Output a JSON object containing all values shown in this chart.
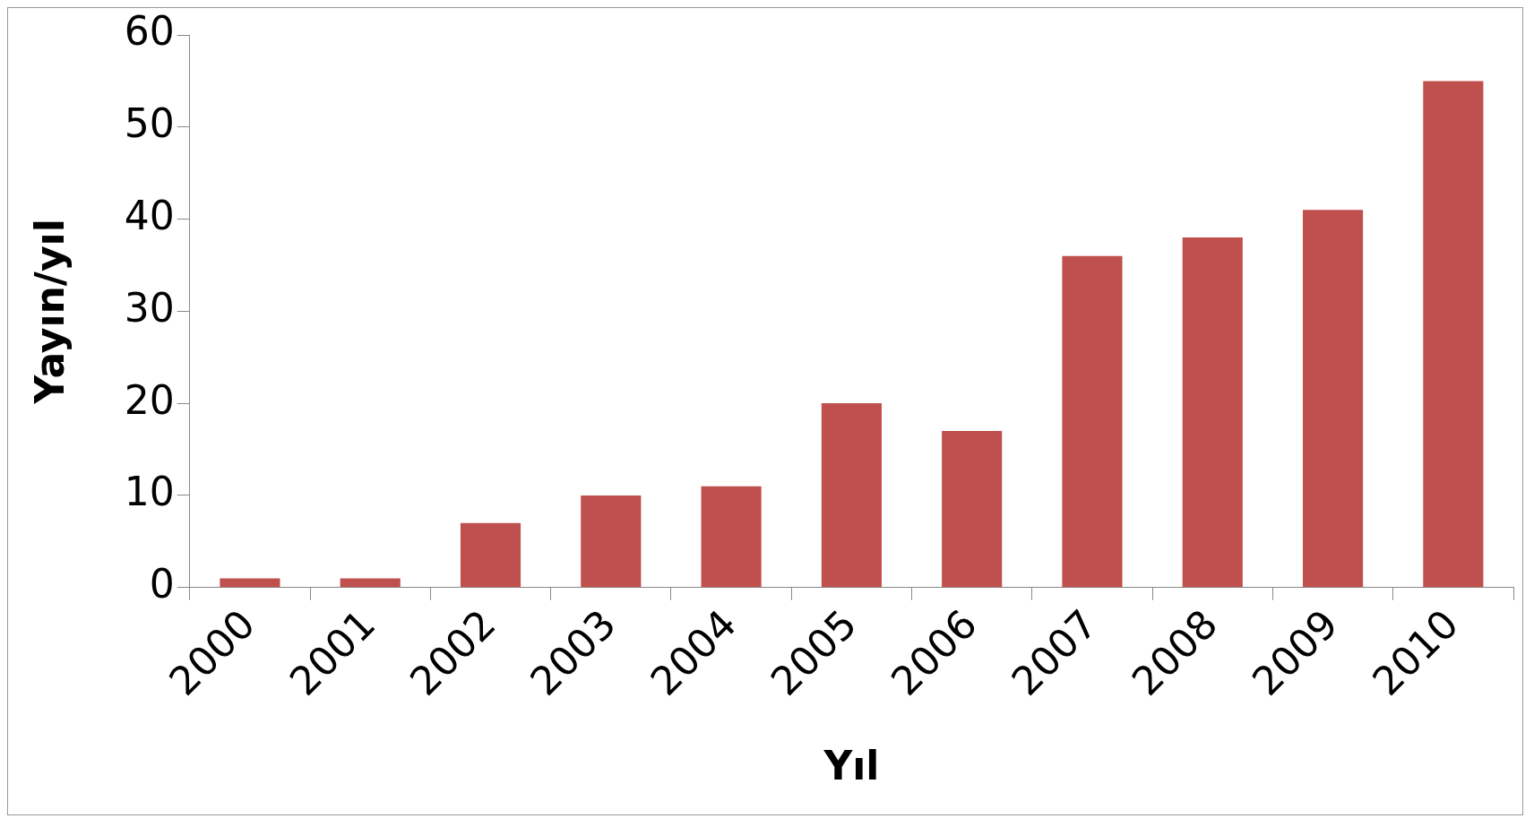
{
  "chart_data": {
    "type": "bar",
    "xlabel": "Yıl",
    "ylabel": "Yayın/yıl",
    "categories": [
      "2000",
      "2001",
      "2002",
      "2003",
      "2004",
      "2005",
      "2006",
      "2007",
      "2008",
      "2009",
      "2010"
    ],
    "values": [
      1,
      1,
      7,
      10,
      11,
      20,
      17,
      36,
      38,
      41,
      55
    ],
    "color": "#c0504d",
    "ylim": [
      0,
      60
    ],
    "yticks": [
      0,
      10,
      20,
      30,
      40,
      50,
      60
    ],
    "grid": false,
    "legend": false
  }
}
